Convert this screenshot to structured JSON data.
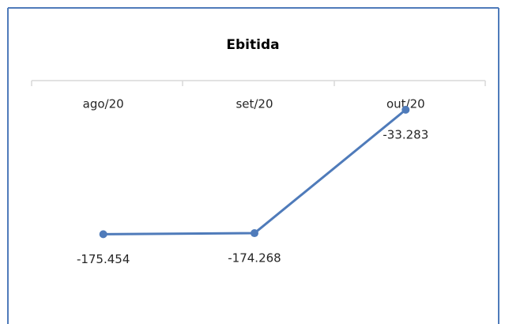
{
  "chart_data": {
    "type": "line",
    "title": "Ebitida",
    "categories": [
      "ago/20",
      "set/20",
      "out/20"
    ],
    "series": [
      {
        "name": "Ebitida",
        "color": "#4f7bba",
        "values": [
          -175454,
          -174268,
          -33283
        ],
        "value_labels": [
          "-175.454",
          "-174.268",
          "-33.283"
        ]
      }
    ],
    "ylim": [
      -260000,
      0
    ]
  }
}
